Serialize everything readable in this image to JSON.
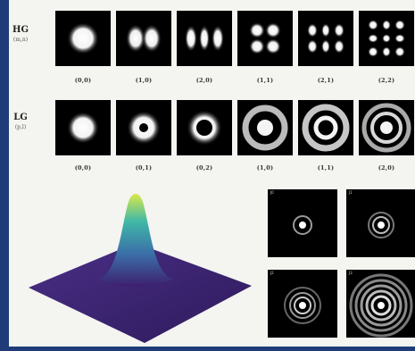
{
  "hg": {
    "label": "HG",
    "sublabel": "(m,n)",
    "modes": [
      {
        "index": "(0,0)",
        "icon": "hg-00-icon"
      },
      {
        "index": "(1,0)",
        "icon": "hg-10-icon"
      },
      {
        "index": "(2,0)",
        "icon": "hg-20-icon"
      },
      {
        "index": "(1,1)",
        "icon": "hg-11-icon"
      },
      {
        "index": "(2,1)",
        "icon": "hg-21-icon"
      },
      {
        "index": "(2,2)",
        "icon": "hg-22-icon"
      }
    ]
  },
  "lg": {
    "label": "LG",
    "sublabel": "(p,l)",
    "modes": [
      {
        "index": "(0,0)",
        "icon": "lg-00-icon"
      },
      {
        "index": "(0,1)",
        "icon": "lg-01-icon"
      },
      {
        "index": "(0,2)",
        "icon": "lg-02-icon"
      },
      {
        "index": "(1,0)",
        "icon": "lg-10-icon"
      },
      {
        "index": "(1,1)",
        "icon": "lg-11-icon"
      },
      {
        "index": "(2,0)",
        "icon": "lg-20-icon"
      }
    ]
  },
  "gaussian_surface": {
    "icon": "gaussian-surface-icon",
    "colormap": [
      "#3d1f6e",
      "#3b6ea8",
      "#3fb8a8",
      "#d9e84a"
    ]
  },
  "bessel_panels": [
    {
      "label": "J0",
      "icon": "bessel-pattern-icon",
      "rings": 1
    },
    {
      "label": "J1",
      "icon": "bessel-pattern-icon",
      "rings": 2
    },
    {
      "label": "J2",
      "icon": "bessel-pattern-icon",
      "rings": 3
    },
    {
      "label": "J3",
      "icon": "bessel-pattern-icon",
      "rings": 6
    }
  ]
}
